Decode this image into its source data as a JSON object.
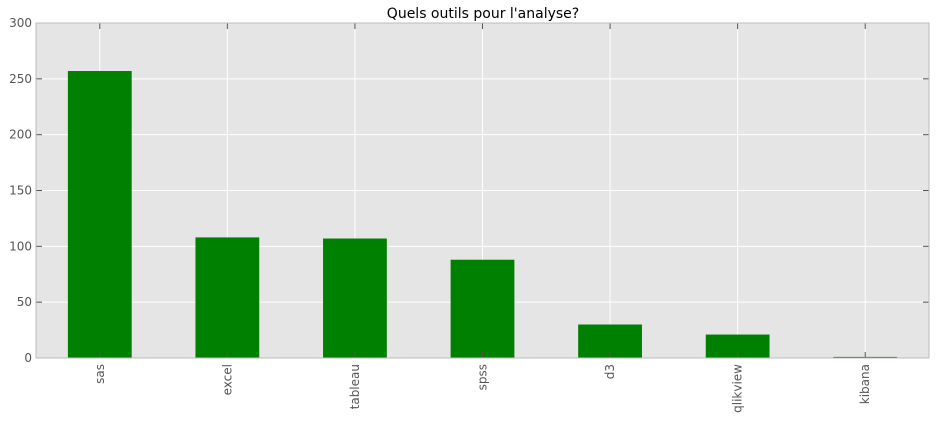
{
  "chart_data": {
    "type": "bar",
    "title": "Quels outils pour l'analyse?",
    "xlabel": "",
    "ylabel": "",
    "categories": [
      "sas",
      "excel",
      "tableau",
      "spss",
      "d3",
      "qlikview",
      "kibana"
    ],
    "values": [
      257,
      108,
      107,
      88,
      30,
      21,
      1
    ],
    "ylim": [
      0,
      300
    ],
    "yticks": [
      0,
      50,
      100,
      150,
      200,
      250,
      300
    ],
    "x_tick_rotation": "vertical",
    "grid": true,
    "legend": "none",
    "colors": {
      "bar": "#008000",
      "plot_background": "#e5e5e5",
      "grid": "#ffffff"
    }
  }
}
